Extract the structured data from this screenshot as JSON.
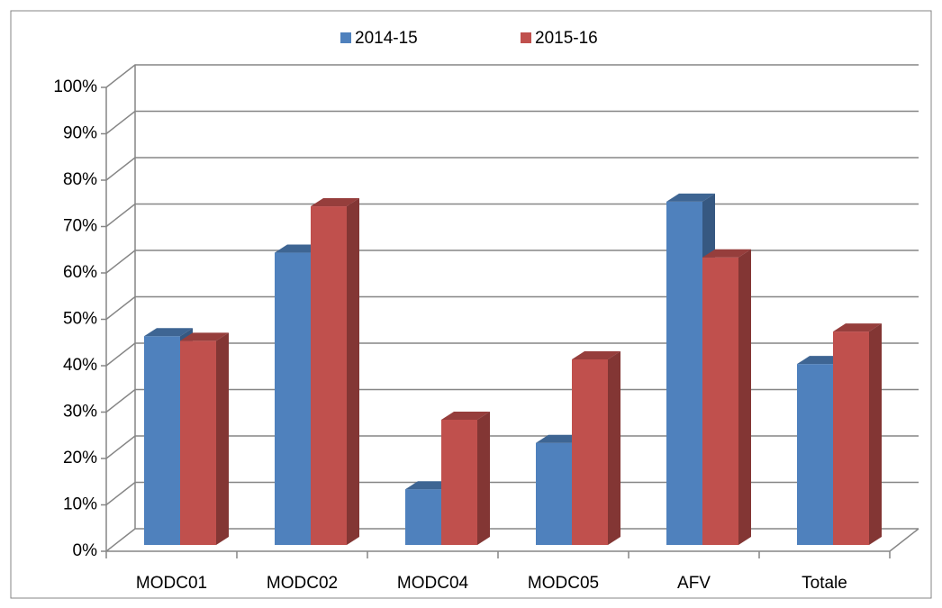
{
  "chart_data": {
    "type": "bar3d",
    "categories": [
      "MODC01",
      "MODC02",
      "MODC04",
      "MODC05",
      "AFV",
      "Totale"
    ],
    "series": [
      {
        "name": "2014-15",
        "color": "#4f81bd",
        "values": [
          45,
          63,
          12,
          22,
          74,
          39
        ]
      },
      {
        "name": "2015-16",
        "color": "#c0504d",
        "values": [
          44,
          73,
          27,
          40,
          62,
          46
        ]
      }
    ],
    "ylim": [
      0,
      100
    ],
    "yticks": [
      {
        "value": 0,
        "label": "0%"
      },
      {
        "value": 10,
        "label": "10%"
      },
      {
        "value": 20,
        "label": "20%"
      },
      {
        "value": 30,
        "label": "30%"
      },
      {
        "value": 40,
        "label": "40%"
      },
      {
        "value": 50,
        "label": "50%"
      },
      {
        "value": 60,
        "label": "60%"
      },
      {
        "value": 70,
        "label": "70%"
      },
      {
        "value": 80,
        "label": "80%"
      },
      {
        "value": 90,
        "label": "90%"
      },
      {
        "value": 100,
        "label": "100%"
      }
    ],
    "grid": true,
    "legend": "top"
  }
}
